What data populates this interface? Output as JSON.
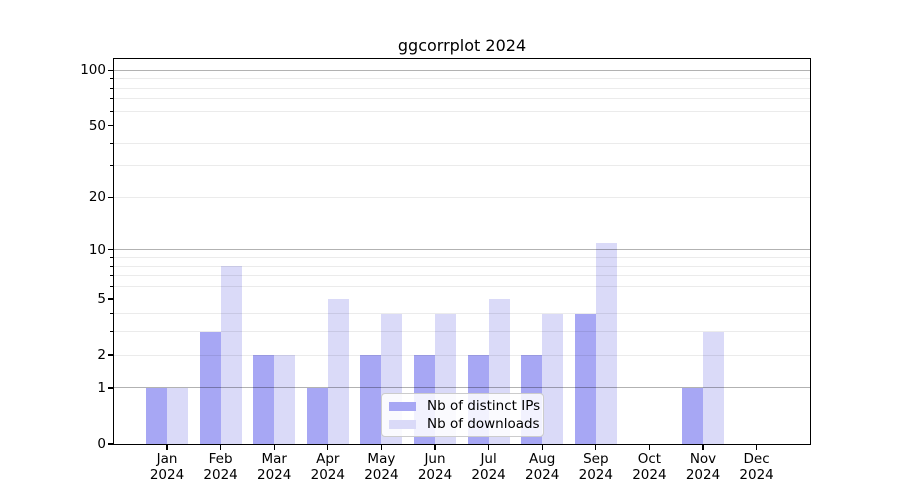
{
  "chart_data": {
    "type": "bar",
    "title": "ggcorrplot 2024",
    "year": "2024",
    "categories": [
      "Jan",
      "Feb",
      "Mar",
      "Apr",
      "May",
      "Jun",
      "Jul",
      "Aug",
      "Sep",
      "Oct",
      "Nov",
      "Dec"
    ],
    "series": [
      {
        "name": "Nb of distinct IPs",
        "color": "#a7a7f4",
        "values": [
          1,
          3,
          2,
          1,
          2,
          2,
          2,
          2,
          4,
          0,
          1,
          0
        ]
      },
      {
        "name": "Nb of downloads",
        "color": "#dadaf8",
        "values": [
          1,
          8,
          2,
          5,
          4,
          4,
          5,
          4,
          11,
          0,
          3,
          0
        ]
      }
    ],
    "yscale": "log1p",
    "ylim": [
      0,
      115
    ],
    "yticks": [
      0,
      1,
      2,
      5,
      10,
      20,
      50,
      100
    ],
    "major_grid": [
      1,
      10,
      100
    ],
    "minor_grid": [
      2,
      3,
      4,
      6,
      7,
      8,
      9,
      20,
      30,
      40,
      60,
      70,
      80,
      90
    ],
    "grid": true,
    "legend_position": "lower center",
    "axis_color": "#000000",
    "major_grid_color": "rgba(0,0,0,0.30)",
    "minor_grid_color": "rgba(0,0,0,0.08)"
  }
}
